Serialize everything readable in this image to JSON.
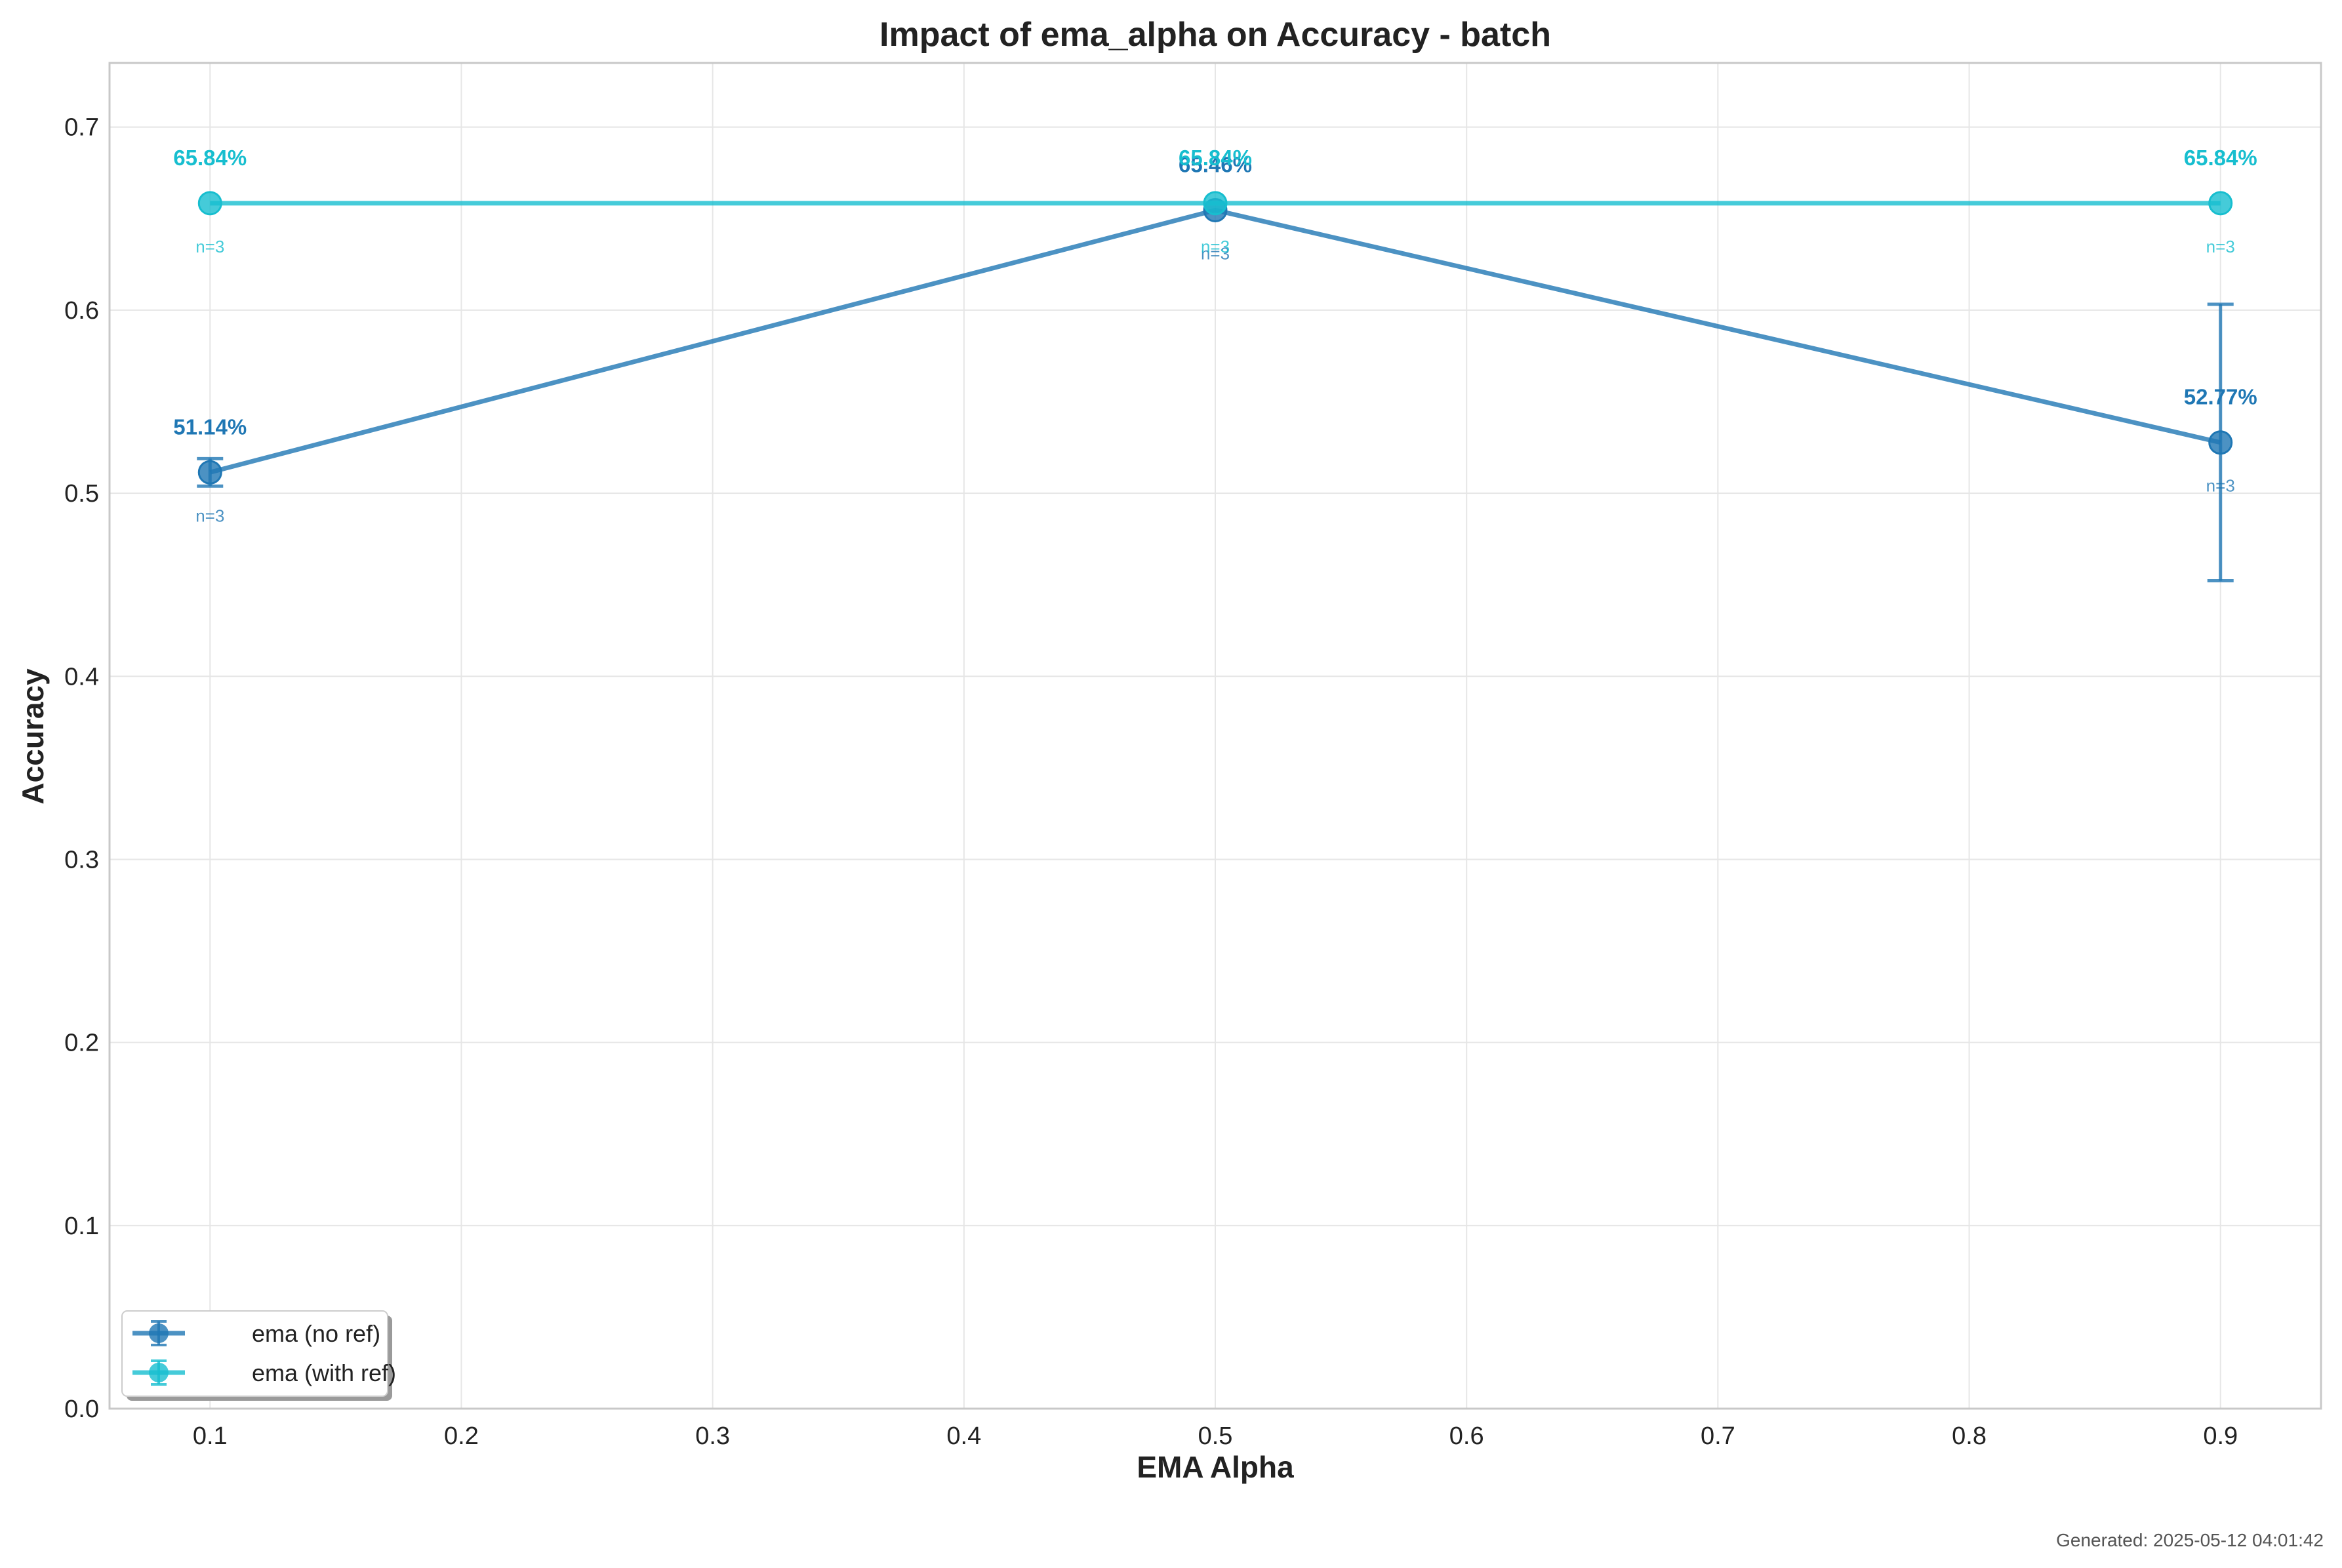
{
  "chart_data": {
    "type": "line",
    "title": "Impact of ema_alpha on Accuracy - batch",
    "xlabel": "EMA Alpha",
    "ylabel": "Accuracy",
    "xlim": [
      0.06,
      0.94
    ],
    "ylim": [
      0.0,
      0.735
    ],
    "xticks": [
      0.1,
      0.2,
      0.3,
      0.4,
      0.5,
      0.6,
      0.7,
      0.8,
      0.9
    ],
    "xtick_labels": [
      "0.1",
      "0.2",
      "0.3",
      "0.4",
      "0.5",
      "0.6",
      "0.7",
      "0.8",
      "0.9"
    ],
    "yticks": [
      0.0,
      0.1,
      0.2,
      0.3,
      0.4,
      0.5,
      0.6,
      0.7
    ],
    "ytick_labels": [
      "0.0",
      "0.1",
      "0.2",
      "0.3",
      "0.4",
      "0.5",
      "0.6",
      "0.7"
    ],
    "grid": true,
    "legend_position": "bottom-left",
    "x": [
      0.1,
      0.5,
      0.9
    ],
    "series": [
      {
        "name": "ema (no ref)",
        "color": "#1f77b4",
        "values": [
          0.5114,
          0.6546,
          0.5277
        ],
        "errors": [
          0.0075,
          0.0,
          0.0755
        ],
        "value_labels": [
          "51.14%",
          "65.46%",
          "52.77%"
        ],
        "n_labels": [
          "n=3",
          "n=3",
          "n=3"
        ]
      },
      {
        "name": "ema (with ref)",
        "color": "#17becf",
        "values": [
          0.6584,
          0.6584,
          0.6584
        ],
        "errors": [
          0.0,
          0.0,
          0.0
        ],
        "value_labels": [
          "65.84%",
          "65.84%",
          "65.84%"
        ],
        "n_labels": [
          "n=3",
          "n=3",
          "n=3"
        ]
      }
    ],
    "footer": "Generated: 2025-05-12 04:01:42"
  }
}
